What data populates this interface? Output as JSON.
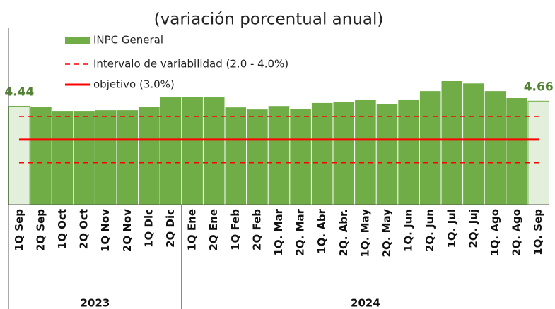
{
  "chart_data": {
    "type": "bar",
    "title": "(variación porcentual anual)",
    "categories": [
      "1Q Sep",
      "2Q Sep",
      "1Q Oct",
      "2Q Oct",
      "1Q Nov",
      "2Q Nov",
      "1Q Dic",
      "2Q Dic",
      "1Q Ene",
      "2Q Ene",
      "1Q Feb",
      "2Q Feb",
      "1Q. Mar",
      "2Q. Mar",
      "1Q. Abr",
      "2Q. Abr.",
      "1Q. May",
      "2Q. May",
      "1Q. Jun",
      "2Q. Jun",
      "1Q. Jul",
      "2Q. Juj",
      "1Q. Ago",
      "2Q. Ago",
      "1Q. Sep"
    ],
    "groups": [
      {
        "name": "2023",
        "count": 8
      },
      {
        "name": "2024",
        "count": 17
      }
    ],
    "series": [
      {
        "name": "INPC General",
        "color": "#70ad47",
        "values": [
          4.44,
          4.42,
          4.21,
          4.21,
          4.27,
          4.27,
          4.42,
          4.82,
          4.85,
          4.82,
          4.39,
          4.3,
          4.45,
          4.33,
          4.58,
          4.61,
          4.7,
          4.52,
          4.7,
          5.09,
          5.52,
          5.42,
          5.09,
          4.79,
          4.66
        ],
        "value_labels": [
          "4.44",
          null,
          null,
          null,
          null,
          null,
          null,
          null,
          null,
          null,
          null,
          null,
          null,
          null,
          null,
          null,
          null,
          null,
          null,
          null,
          null,
          null,
          null,
          null,
          "4.66"
        ],
        "highlight": [
          0,
          24
        ],
        "highlight_color": "#e2efda"
      }
    ],
    "reference_lines": [
      {
        "name": "Intervalo de variabilidad (2.0 - 4.0%)",
        "color": "#ff0000",
        "style": "dashed",
        "values": [
          2.0,
          4.0
        ]
      },
      {
        "name": "objetivo (3.0%)",
        "color": "#ff0000",
        "style": "solid",
        "values": [
          3.0
        ]
      }
    ],
    "ylim": [
      0.2,
      7.8
    ]
  }
}
